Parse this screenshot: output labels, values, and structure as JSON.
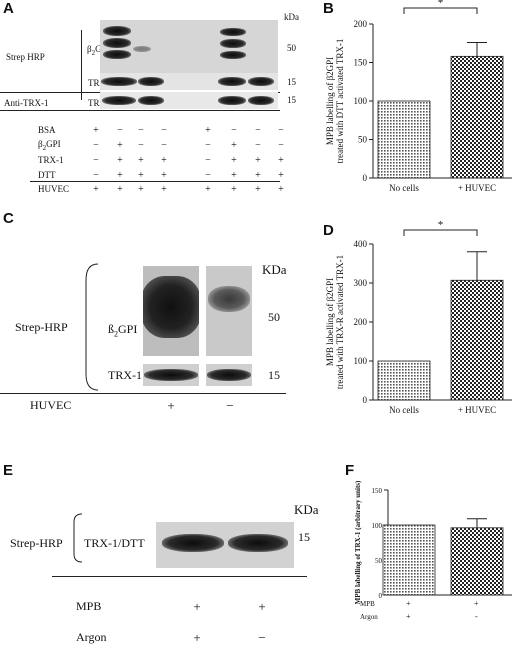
{
  "panels": {
    "A": {
      "letter": "A",
      "kda_label": "kDa",
      "strep_label": "Strep HRP",
      "anti_label": "Anti-TRX-1",
      "b2gpi_label": "β",
      "b2gpi_sub": "2",
      "b2gpi_tail": "GPI",
      "trx_label": "TRX-1",
      "mw_50": "50",
      "mw_15a": "15",
      "mw_15b": "15",
      "conditions": [
        {
          "name": "BSA",
          "signs": [
            "+",
            "−",
            "−",
            "−",
            "+",
            "−",
            "−",
            "−"
          ]
        },
        {
          "name": "β2GPI",
          "signs": [
            "−",
            "+",
            "−",
            "−",
            "−",
            "+",
            "−",
            "−"
          ]
        },
        {
          "name": "TRX-1",
          "signs": [
            "−",
            "+",
            "+",
            "+",
            "−",
            "+",
            "+",
            "+"
          ]
        },
        {
          "name": "DTT",
          "signs": [
            "−",
            "+",
            "+",
            "+",
            "−",
            "+",
            "+",
            "+"
          ]
        },
        {
          "name": "HUVEC",
          "signs": [
            "+",
            "+",
            "+",
            "+",
            "+",
            "+",
            "+",
            "+"
          ]
        }
      ],
      "condition_labels": [
        "BSA",
        "β2GPI",
        "TRX-1",
        "DTT",
        "HUVEC"
      ],
      "cond_b2_prefix": "β",
      "cond_b2_sub": "2",
      "cond_b2_tail": "GPI"
    },
    "C": {
      "letter": "C",
      "kda_label": "KDa",
      "strep_label": "Strep-HRP",
      "b2gpi_label": "ß",
      "b2gpi_sub": "2",
      "b2gpi_tail": "GPI",
      "trx_label": "TRX-1",
      "mw_50": "50",
      "mw_15": "15",
      "huvec_label": "HUVEC",
      "sign_1": "+",
      "sign_2": "−"
    },
    "E": {
      "letter": "E",
      "kda_label": "KDa",
      "strep_label": "Strep-HRP",
      "trx_label": "TRX-1/DTT",
      "mw_15": "15",
      "mpb_label": "MPB",
      "argon_label": "Argon",
      "mpb_sign_1": "+",
      "mpb_sign_2": "+",
      "argon_sign_1": "+",
      "argon_sign_2": "−"
    },
    "B": {
      "letter": "B"
    },
    "D": {
      "letter": "D"
    },
    "F": {
      "letter": "F",
      "row1_label": "MPB",
      "row2_label": "Argon",
      "row1_signs": [
        "+",
        "+"
      ],
      "row2_signs": [
        "+",
        "-"
      ]
    }
  },
  "chart_data": [
    {
      "panel": "B",
      "type": "bar",
      "categories": [
        "No cells",
        "+ HUVEC"
      ],
      "values": [
        100,
        158
      ],
      "errors": [
        0,
        18
      ],
      "ylabel_line1": "MPB labelling of β2GPI",
      "ylabel_line2": "treated with DTT activated TRX-1",
      "yticks": [
        "0",
        "50",
        "100",
        "150",
        "200"
      ],
      "ylim": [
        0,
        200
      ],
      "significance": "*",
      "bar_fills": [
        "dots",
        "checker"
      ]
    },
    {
      "panel": "D",
      "type": "bar",
      "categories": [
        "No cells",
        "+ HUVEC"
      ],
      "values": [
        100,
        307
      ],
      "errors": [
        0,
        73
      ],
      "ylabel_line1": "MPB labelling of β2GPI",
      "ylabel_line2": "treated with TRX-R activated TRX-1",
      "yticks": [
        "0",
        "100",
        "200",
        "300",
        "400"
      ],
      "ylim": [
        0,
        400
      ],
      "significance": "*",
      "bar_fills": [
        "dots",
        "checker"
      ]
    },
    {
      "panel": "F",
      "type": "bar",
      "categories": [
        "MPB + / Argon +",
        "MPB + / Argon -"
      ],
      "values": [
        100,
        96
      ],
      "errors": [
        0,
        13
      ],
      "ylabel_line1": "MPB labelling of TRX-1 (arbitrary units)",
      "yticks": [
        "0",
        "50",
        "100",
        "150"
      ],
      "ylim": [
        0,
        150
      ],
      "bar_fills": [
        "dots",
        "checker"
      ]
    }
  ]
}
